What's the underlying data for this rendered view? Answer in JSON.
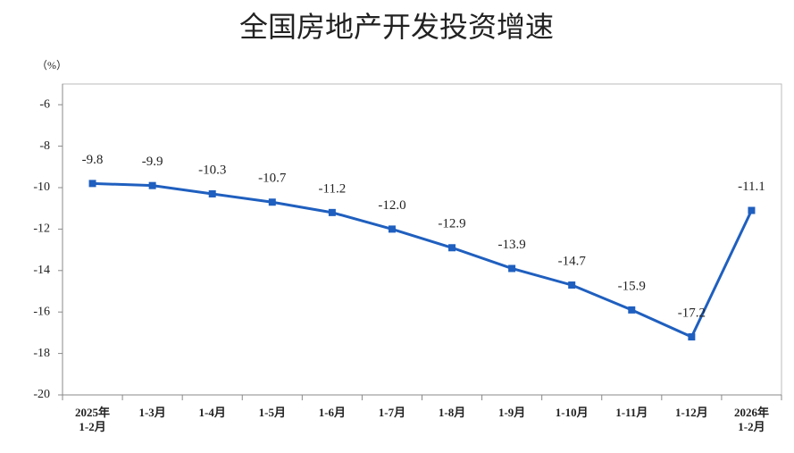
{
  "chart_data": {
    "type": "line",
    "title": "全国房地产开发投资增速",
    "y_label": "（%）",
    "categories": [
      "2025年\n1-2月",
      "1-3月",
      "1-4月",
      "1-5月",
      "1-6月",
      "1-7月",
      "1-8月",
      "1-9月",
      "1-10月",
      "1-11月",
      "1-12月",
      "2026年\n1-2月"
    ],
    "series": [
      {
        "name": "全国房地产开发投资增速",
        "color": "#1f5fbf",
        "values": [
          -9.8,
          -9.9,
          -10.3,
          -10.7,
          -11.2,
          -12.0,
          -12.9,
          -13.9,
          -14.7,
          -15.9,
          -17.2,
          -11.1
        ],
        "value_labels": [
          "-9.8",
          "-9.9",
          "-10.3",
          "-10.7",
          "-11.2",
          "-12.0",
          "-12.9",
          "-13.9",
          "-14.7",
          "-15.9",
          "-17.2",
          "-11.1"
        ]
      }
    ],
    "ylim": [
      -20,
      -5
    ],
    "yticks": [
      -20,
      -18,
      -16,
      -14,
      -12,
      -10,
      -8,
      -6
    ],
    "grid": false
  }
}
